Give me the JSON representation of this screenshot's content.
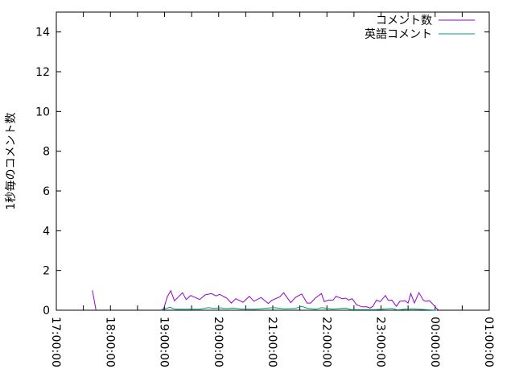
{
  "chart_data": {
    "type": "line",
    "title": "",
    "xlabel": "",
    "ylabel": "1秒毎のコメント数",
    "xlim": [
      "17:00:00",
      "01:00:00"
    ],
    "ylim": [
      0,
      15
    ],
    "x_ticks": [
      "17:00:00",
      "18:00:00",
      "19:00:00",
      "20:00:00",
      "21:00:00",
      "22:00:00",
      "23:00:00",
      "00:00:00",
      "01:00:00"
    ],
    "y_ticks": [
      0,
      2,
      4,
      6,
      8,
      10,
      12,
      14
    ],
    "grid": false,
    "legend_position": "top-right",
    "series": [
      {
        "name": "コメント数",
        "color": "#9400d3",
        "points": [
          [
            "17:40",
            1.0
          ],
          [
            "17:44",
            0
          ],
          [
            "18:55",
            0
          ],
          [
            "18:59",
            0.07
          ],
          [
            "19:03",
            0.68
          ],
          [
            "19:07",
            0.98
          ],
          [
            "19:11",
            0.47
          ],
          [
            "19:20",
            0.88
          ],
          [
            "19:24",
            0.54
          ],
          [
            "19:29",
            0.74
          ],
          [
            "19:39",
            0.54
          ],
          [
            "19:45",
            0.77
          ],
          [
            "19:52",
            0.84
          ],
          [
            "19:57",
            0.72
          ],
          [
            "20:01",
            0.8
          ],
          [
            "20:09",
            0.61
          ],
          [
            "20:14",
            0.36
          ],
          [
            "20:19",
            0.58
          ],
          [
            "20:27",
            0.4
          ],
          [
            "20:34",
            0.7
          ],
          [
            "20:39",
            0.45
          ],
          [
            "20:47",
            0.64
          ],
          [
            "20:55",
            0.34
          ],
          [
            "20:59",
            0.5
          ],
          [
            "21:08",
            0.68
          ],
          [
            "21:12",
            0.88
          ],
          [
            "21:20",
            0.38
          ],
          [
            "21:25",
            0.64
          ],
          [
            "21:32",
            0.82
          ],
          [
            "21:38",
            0.36
          ],
          [
            "21:42",
            0.36
          ],
          [
            "21:47",
            0.61
          ],
          [
            "21:54",
            0.84
          ],
          [
            "21:57",
            0.43
          ],
          [
            "22:02",
            0.51
          ],
          [
            "22:07",
            0.51
          ],
          [
            "22:10",
            0.7
          ],
          [
            "22:17",
            0.58
          ],
          [
            "22:21",
            0.61
          ],
          [
            "22:24",
            0.51
          ],
          [
            "22:28",
            0.58
          ],
          [
            "22:33",
            0.27
          ],
          [
            "22:39",
            0.17
          ],
          [
            "22:44",
            0.17
          ],
          [
            "22:48",
            0.11
          ],
          [
            "22:51",
            0.2
          ],
          [
            "22:55",
            0.51
          ],
          [
            "22:59",
            0.43
          ],
          [
            "23:05",
            0.74
          ],
          [
            "23:08",
            0.5
          ],
          [
            "23:12",
            0.51
          ],
          [
            "23:17",
            0.2
          ],
          [
            "23:21",
            0.45
          ],
          [
            "23:27",
            0.47
          ],
          [
            "23:30",
            0.36
          ],
          [
            "23:33",
            0.84
          ],
          [
            "23:37",
            0.36
          ],
          [
            "23:42",
            0.88
          ],
          [
            "23:47",
            0.5
          ],
          [
            "23:50",
            0.45
          ],
          [
            "23:54",
            0.47
          ],
          [
            "23:59",
            0.23
          ],
          [
            "00:02",
            0.07
          ],
          [
            "00:04",
            0
          ]
        ]
      },
      {
        "name": "英語コメント",
        "color": "#009e73",
        "points": [
          [
            "18:56",
            0
          ],
          [
            "19:06",
            0.15
          ],
          [
            "19:12",
            0.05
          ],
          [
            "19:39",
            0.05
          ],
          [
            "19:48",
            0.13
          ],
          [
            "19:55",
            0.09
          ],
          [
            "20:01",
            0.12
          ],
          [
            "20:09",
            0.08
          ],
          [
            "20:16",
            0.11
          ],
          [
            "20:25",
            0.06
          ],
          [
            "20:40",
            0.05
          ],
          [
            "21:01",
            0.13
          ],
          [
            "21:13",
            0.07
          ],
          [
            "21:25",
            0.09
          ],
          [
            "21:32",
            0.2
          ],
          [
            "21:38",
            0.1
          ],
          [
            "21:48",
            0.05
          ],
          [
            "21:54",
            0.13
          ],
          [
            "22:06",
            0.06
          ],
          [
            "22:21",
            0.11
          ],
          [
            "22:27",
            0.03
          ],
          [
            "22:54",
            0.03
          ],
          [
            "23:12",
            0.09
          ],
          [
            "23:18",
            0.02
          ],
          [
            "23:33",
            0.07
          ],
          [
            "23:50",
            0.03
          ],
          [
            "00:02",
            0
          ]
        ]
      }
    ]
  }
}
